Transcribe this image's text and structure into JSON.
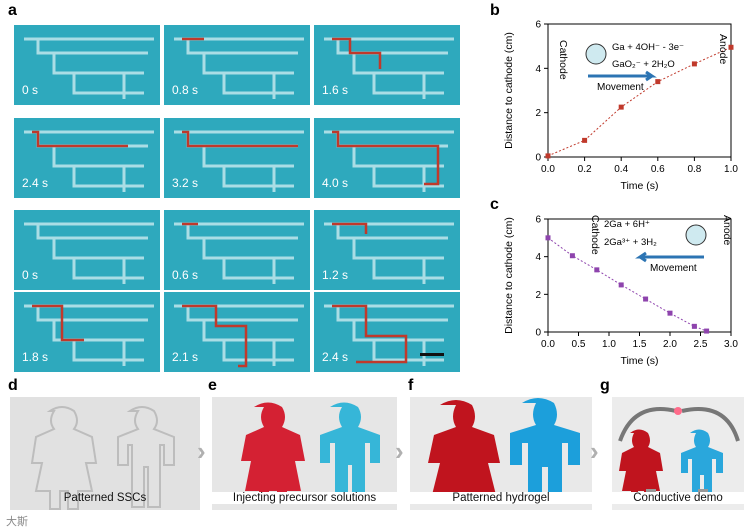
{
  "panels": {
    "a": "a",
    "b": "b",
    "c": "c",
    "d": "d",
    "e": "e",
    "f": "f",
    "g": "g"
  },
  "panel_a": {
    "row1_times": [
      "0 s",
      "0.8 s",
      "1.6 s"
    ],
    "row2_times": [
      "2.4 s",
      "3.2 s",
      "4.0 s"
    ],
    "row3_times": [
      "0 s",
      "0.6 s",
      "1.2 s"
    ],
    "row4_times": [
      "1.8 s",
      "2.1 s",
      "2.4 s"
    ],
    "colors": {
      "tile": "#2ea9bd",
      "channel": "#bfe6ec",
      "path": "#c0392b"
    }
  },
  "chart_data": [
    {
      "id": "b",
      "type": "line",
      "xlabel": "Time (s)",
      "ylabel": "Distance to cathode (cm)",
      "xlim": [
        0.0,
        1.0
      ],
      "ylim": [
        0,
        6
      ],
      "xticks": [
        "0.0",
        "0.2",
        "0.4",
        "0.6",
        "0.8",
        "1.0"
      ],
      "yticks": [
        "0",
        "2",
        "4",
        "6"
      ],
      "x": [
        0.0,
        0.2,
        0.4,
        0.6,
        0.8,
        1.0
      ],
      "values": [
        0.05,
        0.75,
        2.25,
        3.4,
        4.2,
        4.95
      ],
      "color": "#c0392b",
      "annotations": {
        "cathode": "Cathode",
        "anode": "Anode",
        "reaction1": "Ga + 4OH⁻ - 3e⁻",
        "reaction2": "GaO₂⁻ + 2H₂O",
        "movement": "Movement"
      }
    },
    {
      "id": "c",
      "type": "line",
      "xlabel": "Time (s)",
      "ylabel": "Distance to cathode (cm)",
      "xlim": [
        0.0,
        3.0
      ],
      "ylim": [
        0,
        6
      ],
      "xticks": [
        "0.0",
        "0.5",
        "1.0",
        "1.5",
        "2.0",
        "2.5",
        "3.0"
      ],
      "yticks": [
        "0",
        "2",
        "4",
        "6"
      ],
      "x": [
        0.0,
        0.4,
        0.8,
        1.2,
        1.6,
        2.0,
        2.4,
        2.6
      ],
      "values": [
        5.0,
        4.05,
        3.3,
        2.5,
        1.75,
        1.0,
        0.3,
        0.05
      ],
      "color": "#8e44ad",
      "annotations": {
        "cathode": "Cathode",
        "anode": "Anode",
        "reaction1": "2Ga + 6H⁺",
        "reaction2": "2Ga³⁺ + 3H₂",
        "movement": "Movement"
      }
    }
  ],
  "captions": {
    "d": "Patterned SSCs",
    "e": "Injecting precursor solutions",
    "f": "Patterned hydrogel",
    "g": "Conductive demo"
  },
  "watermark": "大斯"
}
